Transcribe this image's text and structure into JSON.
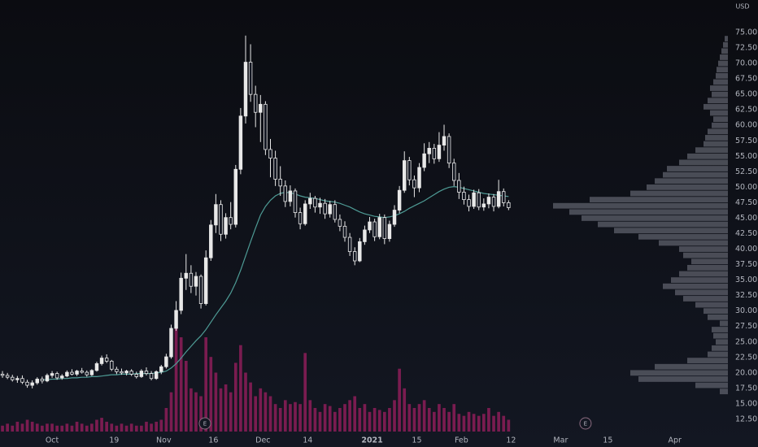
{
  "chart_data": {
    "type": "candlestick",
    "price_axis_label": "USD",
    "up_color": "#e8e8e8",
    "down_color": "#e8e8e8",
    "ma_color": "#4e9b95",
    "volume_color": "#7a1c50",
    "profile_color": "#5d606b",
    "grid": false,
    "xlim": [
      -0.5,
      146.2
    ],
    "ylim": [
      10,
      80.25
    ],
    "volume_ylim": [
      0,
      60
    ],
    "profile_xlim": [
      0,
      230
    ],
    "xticks": [
      {
        "value": 10,
        "label": "Oct"
      },
      {
        "value": 22.5,
        "label": "19"
      },
      {
        "value": 32.5,
        "label": "Nov"
      },
      {
        "value": 42.5,
        "label": "16"
      },
      {
        "value": 52.5,
        "label": "Dec"
      },
      {
        "value": 61.5,
        "label": "14"
      },
      {
        "value": 74.5,
        "label": "2021"
      },
      {
        "value": 83.5,
        "label": "15"
      },
      {
        "value": 92.5,
        "label": "Feb"
      },
      {
        "value": 102.5,
        "label": "12"
      },
      {
        "value": 112.5,
        "label": "Mar"
      },
      {
        "value": 122,
        "label": "15"
      },
      {
        "value": 135.5,
        "label": "Apr"
      }
    ],
    "yticks": [
      {
        "value": 12.5,
        "label": "12.50"
      },
      {
        "value": 15,
        "label": "15.00"
      },
      {
        "value": 17.5,
        "label": "17.50"
      },
      {
        "value": 20,
        "label": "20.00"
      },
      {
        "value": 22.5,
        "label": "22.50"
      },
      {
        "value": 25,
        "label": "25.00"
      },
      {
        "value": 27.5,
        "label": "27.50"
      },
      {
        "value": 30,
        "label": "30.00"
      },
      {
        "value": 32.5,
        "label": "32.50"
      },
      {
        "value": 35,
        "label": "35.00"
      },
      {
        "value": 37.5,
        "label": "37.50"
      },
      {
        "value": 40,
        "label": "40.00"
      },
      {
        "value": 42.5,
        "label": "42.50"
      },
      {
        "value": 45,
        "label": "45.00"
      },
      {
        "value": 47.5,
        "label": "47.50"
      },
      {
        "value": 50,
        "label": "50.00"
      },
      {
        "value": 52.5,
        "label": "52.50"
      },
      {
        "value": 55,
        "label": "55.00"
      },
      {
        "value": 57.5,
        "label": "57.50"
      },
      {
        "value": 60,
        "label": "60.00"
      },
      {
        "value": 62.5,
        "label": "62.50"
      },
      {
        "value": 65,
        "label": "65.00"
      },
      {
        "value": 67.5,
        "label": "67.50"
      },
      {
        "value": 70,
        "label": "70.00"
      },
      {
        "value": 72.5,
        "label": "72.50"
      },
      {
        "value": 75,
        "label": "75.00"
      }
    ],
    "candles": [
      [
        19.8,
        20.3,
        19.2,
        19.6
      ],
      [
        19.6,
        20.0,
        19.0,
        19.3
      ],
      [
        19.3,
        19.7,
        18.6,
        18.9
      ],
      [
        18.9,
        19.5,
        18.4,
        19.1
      ],
      [
        19.1,
        19.6,
        18.2,
        18.5
      ],
      [
        18.5,
        18.9,
        17.6,
        18.0
      ],
      [
        18.0,
        18.8,
        17.5,
        18.4
      ],
      [
        18.4,
        19.3,
        18.1,
        19.0
      ],
      [
        19.0,
        19.4,
        18.3,
        18.7
      ],
      [
        18.7,
        19.9,
        18.5,
        19.6
      ],
      [
        19.6,
        20.3,
        19.2,
        19.9
      ],
      [
        19.9,
        20.2,
        18.9,
        19.2
      ],
      [
        19.2,
        19.8,
        18.9,
        19.5
      ],
      [
        19.5,
        20.4,
        19.3,
        20.1
      ],
      [
        20.1,
        20.6,
        19.6,
        19.8
      ],
      [
        19.8,
        20.5,
        19.5,
        20.3
      ],
      [
        20.3,
        20.8,
        19.9,
        20.1
      ],
      [
        20.1,
        20.4,
        19.4,
        19.7
      ],
      [
        19.7,
        20.6,
        19.5,
        20.4
      ],
      [
        20.4,
        21.8,
        20.2,
        21.5
      ],
      [
        21.5,
        22.8,
        21.2,
        22.4
      ],
      [
        22.4,
        23.0,
        21.6,
        21.9
      ],
      [
        21.9,
        22.1,
        20.3,
        20.6
      ],
      [
        20.6,
        21.0,
        19.8,
        20.2
      ],
      [
        20.2,
        20.7,
        19.7,
        20.0
      ],
      [
        20.0,
        20.5,
        19.6,
        20.3
      ],
      [
        20.3,
        20.6,
        19.5,
        19.8
      ],
      [
        19.8,
        20.2,
        19.1,
        19.4
      ],
      [
        19.4,
        20.6,
        19.2,
        20.3
      ],
      [
        20.3,
        20.9,
        19.6,
        19.9
      ],
      [
        19.9,
        20.3,
        18.8,
        19.1
      ],
      [
        19.1,
        20.4,
        18.9,
        20.2
      ],
      [
        20.2,
        21.3,
        19.8,
        21.0
      ],
      [
        21.0,
        23.1,
        20.7,
        22.6
      ],
      [
        22.6,
        27.8,
        22.3,
        27.2
      ],
      [
        27.2,
        31.6,
        26.8,
        30.1
      ],
      [
        30.1,
        36.2,
        29.5,
        35.3
      ],
      [
        35.3,
        39.2,
        33.4,
        36.1
      ],
      [
        36.1,
        37.4,
        32.9,
        34.0
      ],
      [
        34.0,
        36.3,
        32.5,
        35.6
      ],
      [
        35.6,
        35.9,
        30.4,
        31.2
      ],
      [
        31.2,
        39.8,
        30.9,
        38.6
      ],
      [
        38.6,
        44.7,
        38.1,
        43.9
      ],
      [
        43.9,
        48.9,
        42.6,
        47.2
      ],
      [
        47.2,
        47.9,
        41.3,
        42.4
      ],
      [
        42.4,
        45.8,
        41.7,
        45.1
      ],
      [
        45.1,
        47.6,
        43.2,
        44.0
      ],
      [
        44.0,
        53.6,
        43.5,
        52.9
      ],
      [
        52.9,
        62.8,
        52.1,
        61.5
      ],
      [
        61.5,
        74.5,
        60.3,
        70.2
      ],
      [
        70.2,
        73.1,
        63.8,
        65.0
      ],
      [
        65.0,
        66.4,
        59.7,
        62.1
      ],
      [
        62.1,
        64.9,
        57.3,
        63.4
      ],
      [
        63.4,
        63.9,
        55.2,
        56.1
      ],
      [
        56.1,
        57.8,
        51.6,
        54.7
      ],
      [
        54.7,
        55.9,
        50.2,
        51.3
      ],
      [
        51.3,
        53.4,
        48.6,
        50.2
      ],
      [
        50.2,
        51.1,
        46.8,
        47.7
      ],
      [
        47.7,
        50.3,
        46.9,
        49.4
      ],
      [
        49.4,
        49.8,
        45.1,
        45.9
      ],
      [
        45.9,
        46.7,
        43.2,
        44.1
      ],
      [
        44.1,
        47.9,
        43.8,
        47.3
      ],
      [
        47.3,
        49.1,
        46.5,
        48.2
      ],
      [
        48.2,
        48.6,
        45.9,
        46.8
      ],
      [
        46.8,
        48.3,
        45.7,
        47.4
      ],
      [
        47.4,
        48.1,
        44.9,
        45.7
      ],
      [
        45.7,
        47.8,
        45.1,
        47.2
      ],
      [
        47.2,
        47.9,
        44.3,
        44.8
      ],
      [
        44.8,
        45.6,
        42.9,
        43.7
      ],
      [
        43.7,
        44.5,
        41.2,
        41.9
      ],
      [
        41.9,
        42.6,
        38.9,
        39.6
      ],
      [
        39.6,
        40.3,
        37.4,
        38.1
      ],
      [
        38.1,
        41.8,
        37.9,
        41.2
      ],
      [
        41.2,
        43.8,
        40.7,
        43.1
      ],
      [
        43.1,
        45.2,
        42.6,
        44.4
      ],
      [
        44.4,
        44.9,
        41.3,
        42.0
      ],
      [
        42.0,
        45.7,
        41.6,
        45.1
      ],
      [
        45.1,
        45.6,
        40.8,
        41.7
      ],
      [
        41.7,
        44.6,
        41.2,
        44.0
      ],
      [
        44.0,
        47.1,
        43.6,
        46.3
      ],
      [
        46.3,
        50.2,
        45.8,
        49.5
      ],
      [
        49.5,
        55.8,
        49.1,
        54.3
      ],
      [
        54.3,
        54.9,
        50.3,
        51.2
      ],
      [
        51.2,
        51.9,
        48.4,
        49.9
      ],
      [
        49.9,
        53.9,
        49.2,
        53.2
      ],
      [
        53.2,
        57.1,
        52.6,
        55.4
      ],
      [
        55.4,
        57.3,
        53.9,
        56.3
      ],
      [
        56.3,
        57.0,
        53.8,
        54.6
      ],
      [
        54.6,
        58.9,
        54.1,
        56.8
      ],
      [
        56.8,
        60.1,
        55.9,
        58.2
      ],
      [
        58.2,
        58.7,
        53.1,
        53.9
      ],
      [
        53.9,
        54.6,
        50.2,
        51.1
      ],
      [
        51.1,
        52.3,
        48.1,
        49.2
      ],
      [
        49.2,
        50.1,
        47.2,
        48.0
      ],
      [
        48.0,
        48.8,
        46.1,
        46.9
      ],
      [
        46.9,
        49.6,
        46.5,
        49.1
      ],
      [
        49.1,
        49.7,
        46.3,
        46.8
      ],
      [
        46.8,
        48.2,
        46.2,
        47.3
      ],
      [
        47.3,
        49.0,
        46.6,
        48.4
      ],
      [
        48.4,
        48.9,
        46.1,
        46.9
      ],
      [
        46.9,
        51.2,
        46.6,
        49.3
      ],
      [
        49.3,
        49.8,
        46.9,
        47.5
      ],
      [
        47.5,
        47.9,
        46.3,
        46.7
      ]
    ],
    "ma": [
      null,
      null,
      null,
      null,
      null,
      null,
      null,
      null,
      18.9,
      18.9,
      19.0,
      19.0,
      19.1,
      19.1,
      19.2,
      19.2,
      19.3,
      19.3,
      19.4,
      19.4,
      19.5,
      19.6,
      19.7,
      19.7,
      19.8,
      19.8,
      19.8,
      19.9,
      19.9,
      19.9,
      19.9,
      20.0,
      20.1,
      20.3,
      20.8,
      21.5,
      22.4,
      23.4,
      24.3,
      25.2,
      26.0,
      27.0,
      28.2,
      29.4,
      30.5,
      31.6,
      32.9,
      34.6,
      36.6,
      38.9,
      41.2,
      43.4,
      45.5,
      46.9,
      47.9,
      48.6,
      49.0,
      49.2,
      49.1,
      48.9,
      48.6,
      48.4,
      48.3,
      48.2,
      48.0,
      47.8,
      47.7,
      47.6,
      47.4,
      47.1,
      46.8,
      46.4,
      46.0,
      45.7,
      45.5,
      45.3,
      45.2,
      45.1,
      45.2,
      45.4,
      45.7,
      46.1,
      46.6,
      47.0,
      47.4,
      47.8,
      48.3,
      48.8,
      49.3,
      49.7,
      50.0,
      50.1,
      50.0,
      49.8,
      49.6,
      49.4,
      49.2,
      49.0,
      48.9,
      48.8,
      48.7,
      48.6,
      48.5
    ],
    "volume": [
      3,
      4,
      3,
      5,
      4,
      6,
      5,
      4,
      3,
      4,
      4,
      3,
      3,
      4,
      3,
      5,
      4,
      3,
      4,
      6,
      7,
      5,
      4,
      3,
      4,
      3,
      4,
      3,
      3,
      5,
      4,
      5,
      6,
      12,
      20,
      55,
      48,
      36,
      22,
      20,
      18,
      48,
      38,
      30,
      22,
      24,
      20,
      35,
      44,
      30,
      25,
      18,
      22,
      20,
      18,
      14,
      12,
      16,
      14,
      15,
      14,
      40,
      16,
      12,
      10,
      14,
      13,
      10,
      12,
      14,
      16,
      18,
      12,
      14,
      10,
      12,
      11,
      10,
      12,
      16,
      32,
      22,
      14,
      12,
      14,
      16,
      12,
      10,
      14,
      12,
      10,
      14,
      9,
      8,
      10,
      9,
      8,
      9,
      12,
      8,
      10,
      8,
      6
    ],
    "profile": {
      "prices": [
        17,
        18,
        19,
        20,
        21,
        22,
        23,
        24,
        25,
        26,
        27,
        28,
        29,
        30,
        31,
        32,
        33,
        34,
        35,
        36,
        37,
        38,
        39,
        40,
        41,
        42,
        43,
        44,
        45,
        46,
        47,
        48,
        49,
        50,
        51,
        52,
        53,
        54,
        55,
        56,
        57,
        58,
        59,
        60,
        61,
        62,
        63,
        64,
        65,
        66,
        67,
        68,
        69,
        70,
        71,
        72,
        73,
        74
      ],
      "volumes": [
        10,
        40,
        110,
        120,
        90,
        50,
        25,
        20,
        15,
        18,
        20,
        10,
        25,
        30,
        40,
        55,
        65,
        80,
        70,
        60,
        50,
        45,
        55,
        60,
        85,
        110,
        140,
        160,
        180,
        195,
        215,
        170,
        120,
        100,
        90,
        80,
        75,
        60,
        50,
        40,
        30,
        28,
        25,
        20,
        18,
        22,
        30,
        25,
        20,
        22,
        18,
        15,
        14,
        12,
        10,
        8,
        6,
        4
      ]
    },
    "events": [
      {
        "label": "E",
        "x": 40.8
      },
      {
        "label": "E",
        "x": 117.5
      }
    ]
  }
}
